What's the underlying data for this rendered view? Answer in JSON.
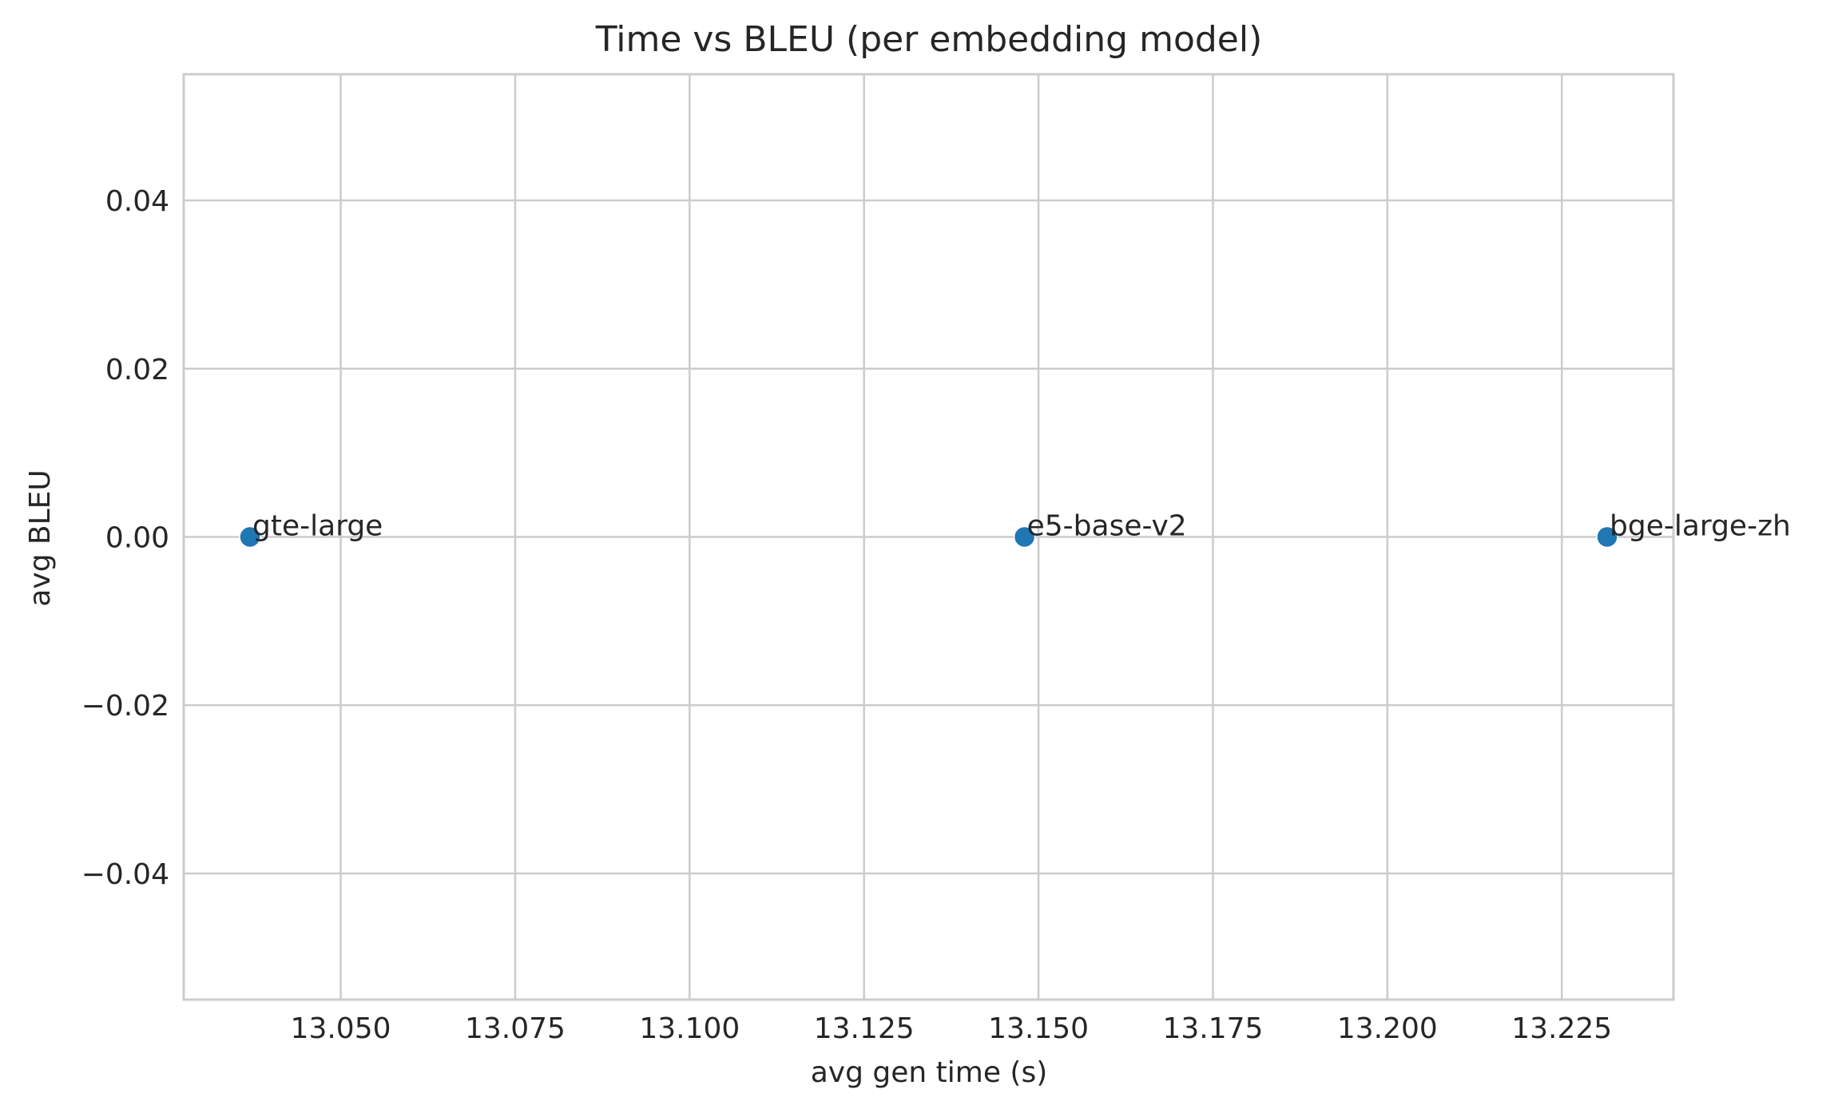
{
  "chart_data": {
    "type": "scatter",
    "title": "Time vs BLEU (per embedding model)",
    "xlabel": "avg gen time (s)",
    "ylabel": "avg BLEU",
    "xlim": [
      13.0275,
      13.241
    ],
    "ylim": [
      -0.055,
      0.055
    ],
    "xticks": [
      13.05,
      13.075,
      13.1,
      13.125,
      13.15,
      13.175,
      13.2,
      13.225
    ],
    "xtick_labels": [
      "13.050",
      "13.075",
      "13.100",
      "13.125",
      "13.150",
      "13.175",
      "13.200",
      "13.225"
    ],
    "yticks": [
      0.04,
      0.02,
      0.0,
      -0.02,
      -0.04
    ],
    "ytick_labels": [
      "0.04",
      "0.02",
      "0.00",
      "−0.02",
      "−0.04"
    ],
    "grid": true,
    "marker_color": "#1f77b4",
    "points": [
      {
        "label": "gte-large",
        "x": 13.037,
        "y": 0.0
      },
      {
        "label": "e5-base-v2",
        "x": 13.148,
        "y": 0.0
      },
      {
        "label": "bge-large-zh",
        "x": 13.2315,
        "y": 0.0
      }
    ]
  }
}
